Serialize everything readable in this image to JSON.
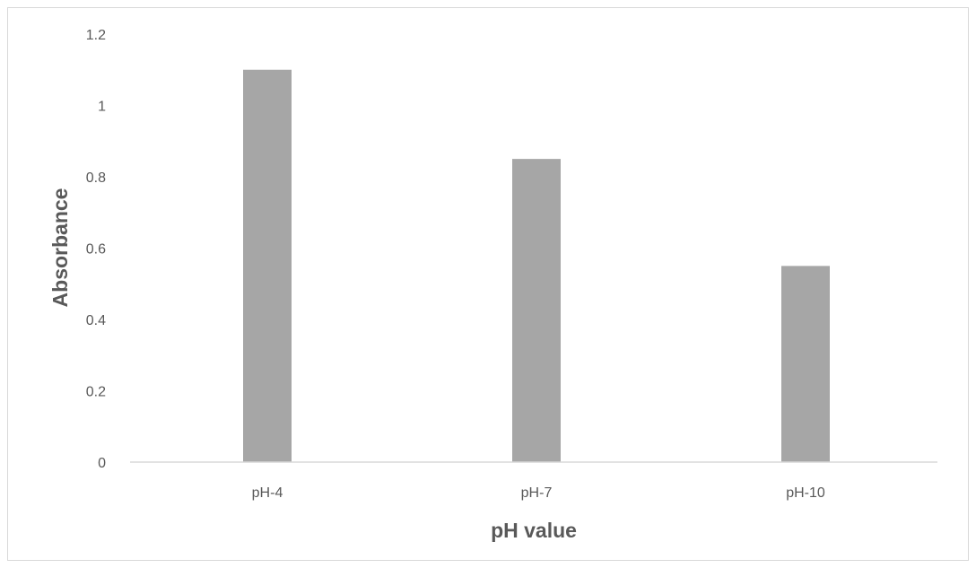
{
  "chart_data": {
    "type": "bar",
    "categories": [
      "pH-4",
      "pH-7",
      "pH-10"
    ],
    "values": [
      1.1,
      0.85,
      0.55
    ],
    "title": "",
    "xlabel": "pH value",
    "ylabel": "Absorbance",
    "ylim": [
      0,
      1.2
    ],
    "yticks": [
      "0",
      "0.2",
      "0.4",
      "0.6",
      "0.8",
      "1",
      "1.2"
    ],
    "grid": false,
    "legend": "none",
    "bar_color": "#a6a6a6",
    "axis_color": "#d9d9d9",
    "text_color": "#595959"
  }
}
